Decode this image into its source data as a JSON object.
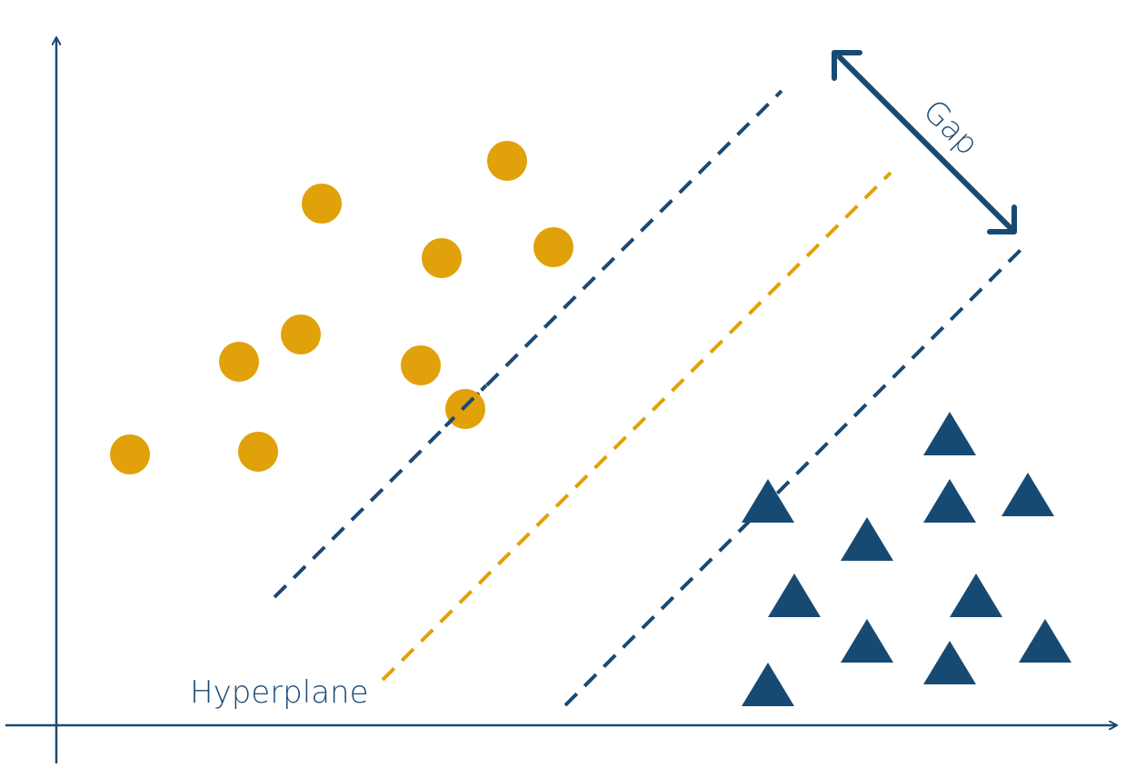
{
  "colors": {
    "axis": "#1b4a73",
    "margin_line": "#1b4a73",
    "hyperplane": "#e0a10a",
    "class_circle": "#e0a10a",
    "class_triangle": "#174a73",
    "label": "#1b4a73"
  },
  "labels": {
    "hyperplane": "Hyperplane",
    "gap": "Gap"
  },
  "legend_items": [
    {
      "shape": "circle",
      "class": "class-a"
    },
    {
      "shape": "triangle",
      "class": "class-b"
    }
  ]
}
